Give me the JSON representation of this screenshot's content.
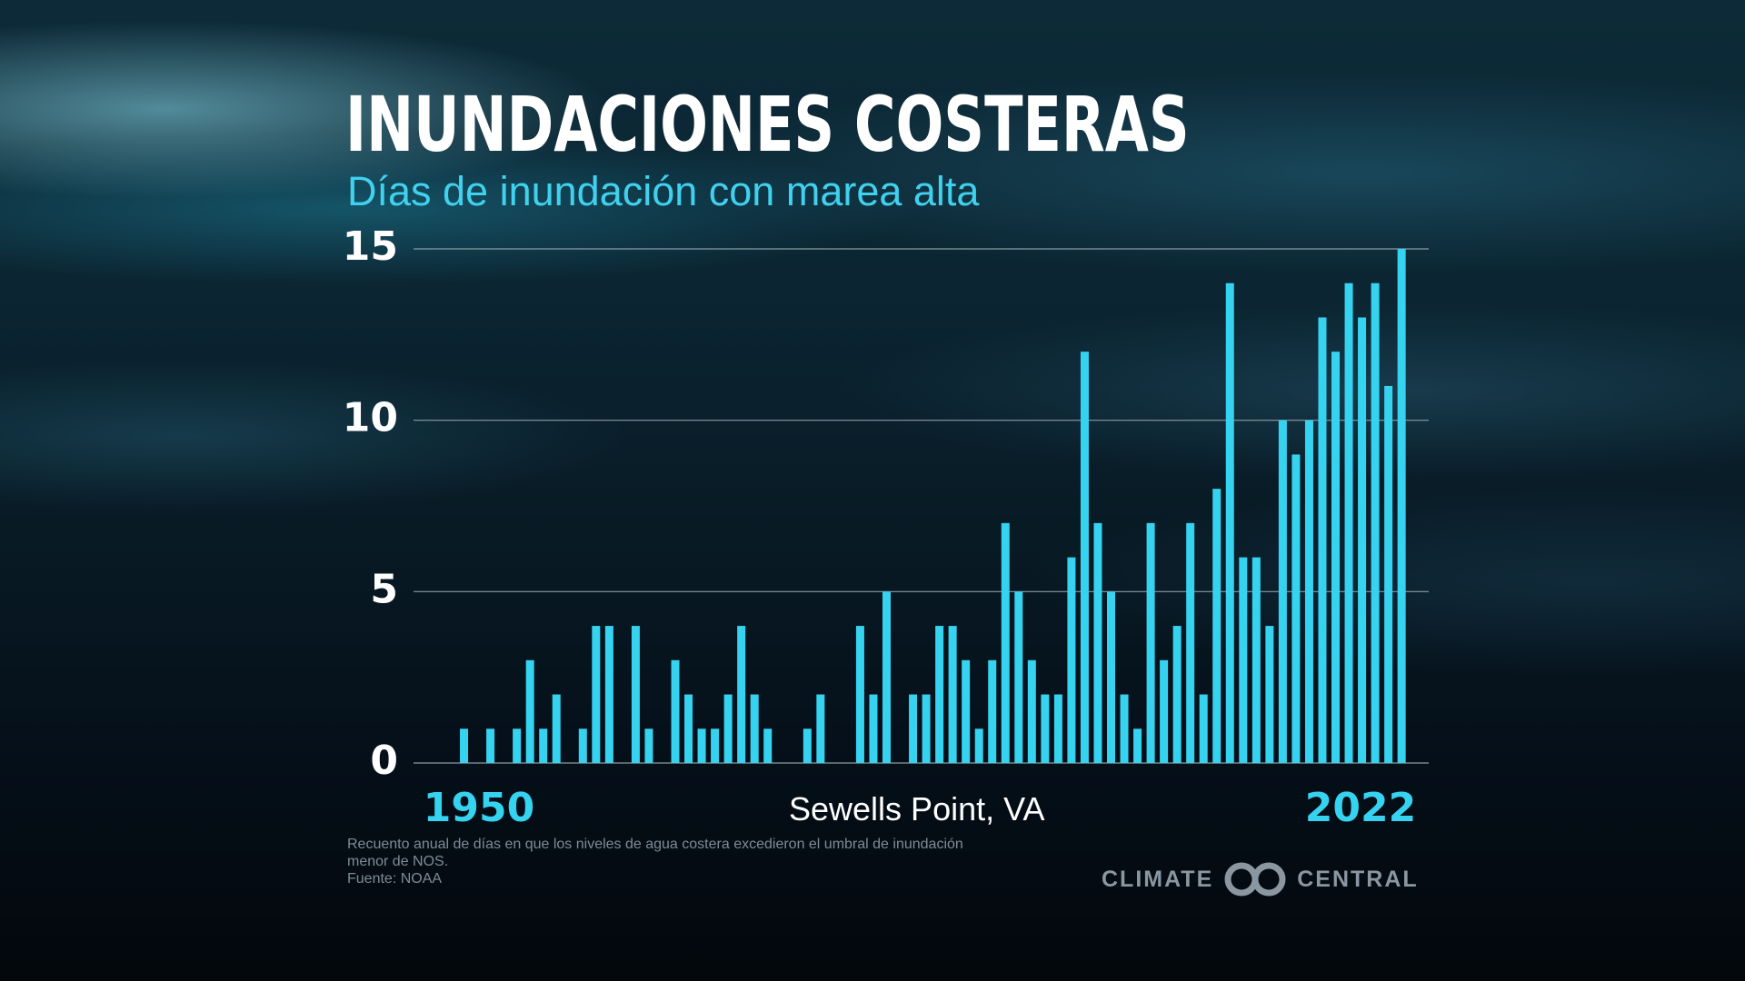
{
  "title": "INUNDACIONES COSTERAS",
  "subtitle": "Días de inundación con marea alta",
  "station": "Sewells Point, VA",
  "footnote": {
    "line1": "Recuento anual de días en que los niveles de agua costera excedieron el umbral de inundación",
    "line2": "menor de NOS.",
    "source": "Fuente: NOAA"
  },
  "logo": {
    "left": "CLIMATE",
    "right": "CENTRAL"
  },
  "colors": {
    "bar": "#36d3f0",
    "title": "#ffffff",
    "subtitle": "#3fd1ee",
    "grid": "#8a9aa5",
    "axis_year": "#36d3f0"
  },
  "chart_data": {
    "type": "bar",
    "x": [
      1950,
      1951,
      1952,
      1953,
      1954,
      1955,
      1956,
      1957,
      1958,
      1959,
      1960,
      1961,
      1962,
      1963,
      1964,
      1965,
      1966,
      1967,
      1968,
      1969,
      1970,
      1971,
      1972,
      1973,
      1974,
      1975,
      1976,
      1977,
      1978,
      1979,
      1980,
      1981,
      1982,
      1983,
      1984,
      1985,
      1986,
      1987,
      1988,
      1989,
      1990,
      1991,
      1992,
      1993,
      1994,
      1995,
      1996,
      1997,
      1998,
      1999,
      2000,
      2001,
      2002,
      2003,
      2004,
      2005,
      2006,
      2007,
      2008,
      2009,
      2010,
      2011,
      2012,
      2013,
      2014,
      2015,
      2016,
      2017,
      2018,
      2019,
      2020,
      2021,
      2022
    ],
    "values": [
      0,
      1,
      0,
      1,
      0,
      1,
      3,
      1,
      2,
      0,
      1,
      4,
      4,
      0,
      4,
      1,
      0,
      3,
      2,
      1,
      1,
      2,
      4,
      2,
      1,
      0,
      0,
      1,
      2,
      0,
      0,
      4,
      2,
      5,
      0,
      2,
      2,
      4,
      4,
      3,
      1,
      3,
      7,
      5,
      3,
      2,
      2,
      6,
      12,
      7,
      5,
      2,
      1,
      7,
      3,
      4,
      7,
      2,
      8,
      14,
      6,
      6,
      4,
      10,
      9,
      10,
      13,
      12,
      14,
      13,
      14,
      11,
      15
    ],
    "x_tick_labels": [
      "1950",
      "2022"
    ],
    "y_ticks": [
      0,
      5,
      10,
      15
    ],
    "ylim": [
      0,
      15
    ],
    "grid": true
  }
}
